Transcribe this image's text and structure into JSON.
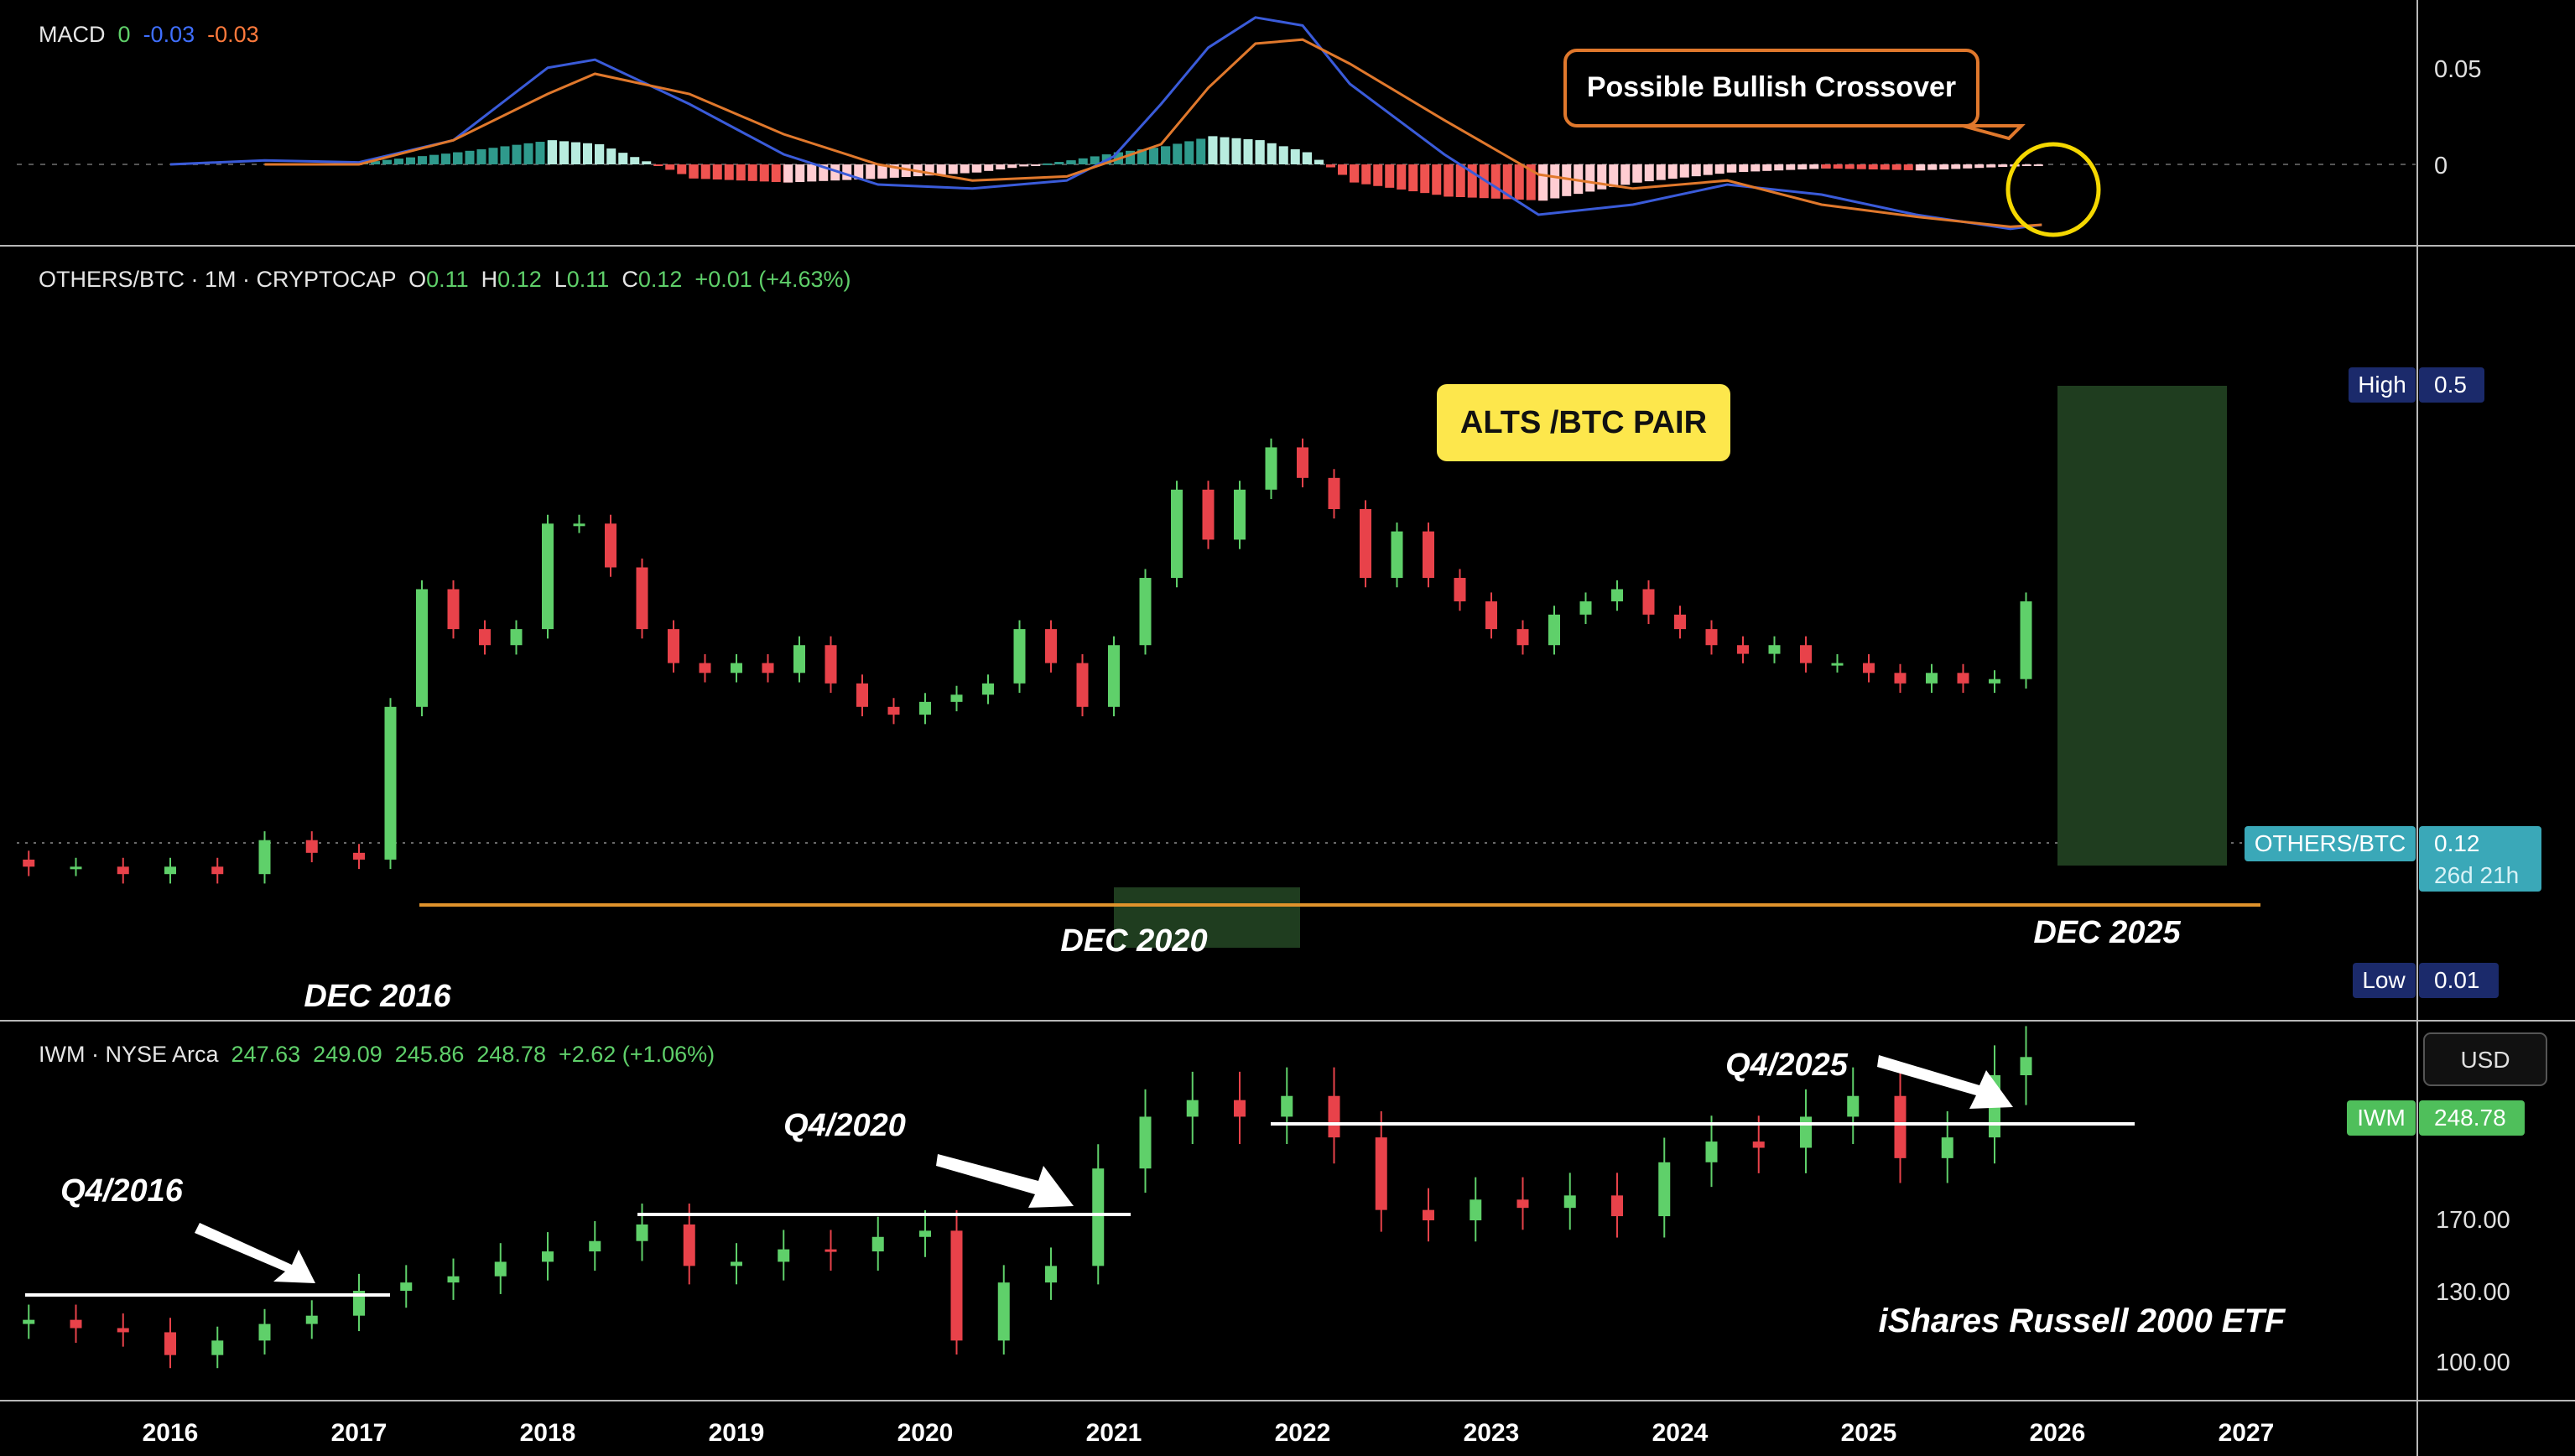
{
  "macd_panel": {
    "label": "MACD",
    "values": [
      "0",
      "-0.03",
      "-0.03"
    ],
    "axis_ticks": [
      "0.05",
      "0"
    ],
    "annotation": "Possible Bullish Crossover"
  },
  "others_panel": {
    "symbol": "OTHERS/BTC · 1M · CRYPTOCAP",
    "ohlc": {
      "o": "0.11",
      "h": "0.12",
      "l": "0.11",
      "c": "0.12",
      "change": "+0.01 (+4.63%)"
    },
    "title_box": "ALTS /BTC PAIR",
    "high_label": "High",
    "high_value": "0.5",
    "low_label": "Low",
    "low_value": "0.01",
    "price_tag_name": "OTHERS/BTC",
    "price_tag_value": "0.12",
    "price_tag_countdown": "26d 21h",
    "cycle_labels": [
      "DEC 2016",
      "DEC 2020",
      "DEC 2025"
    ]
  },
  "iwm_panel": {
    "symbol": "IWM · NYSE Arca",
    "ohlc": [
      "247.63",
      "249.09",
      "245.86",
      "248.78"
    ],
    "change": "+2.62 (+1.06%)",
    "currency": "USD",
    "price_tag_name": "IWM",
    "price_tag_value": "248.78",
    "axis_ticks": [
      "170.00",
      "130.00",
      "100.00"
    ],
    "caption": "iShares Russell 2000 ETF",
    "quarter_labels": [
      "Q4/2016",
      "Q4/2020",
      "Q4/2025"
    ]
  },
  "x_axis": {
    "ticks": [
      "2016",
      "2017",
      "2018",
      "2019",
      "2020",
      "2021",
      "2022",
      "2023",
      "2024",
      "2025",
      "2026",
      "2027"
    ]
  },
  "colors": {
    "up": "#5fd06a",
    "down": "#e8424a",
    "macd_line": "#3a5bd9",
    "signal_line": "#e0782c",
    "hist_up_strong": "#2f9a8c",
    "hist_up_weak": "#b8ecdf",
    "hist_down_strong": "#ef5350",
    "hist_down_weak": "#ffcdd2",
    "highlight_zone": "#1f3d1f",
    "support_line": "#e0932c",
    "annotation_yellow": "#fde74c"
  },
  "chart_data": [
    {
      "type": "line",
      "title": "MACD",
      "x_range": [
        "2015-01",
        "2027-04"
      ],
      "series": [
        {
          "name": "MACD",
          "x": [
            "2016-01",
            "2016-07",
            "2017-01",
            "2017-07",
            "2018-01",
            "2018-04",
            "2018-10",
            "2019-04",
            "2019-10",
            "2020-04",
            "2020-10",
            "2021-01",
            "2021-04",
            "2021-07",
            "2021-10",
            "2022-01",
            "2022-04",
            "2022-10",
            "2023-04",
            "2023-10",
            "2024-04",
            "2024-10",
            "2025-04",
            "2025-10",
            "2025-12"
          ],
          "values": [
            0,
            0.002,
            0.001,
            0.012,
            0.048,
            0.052,
            0.03,
            0.005,
            -0.01,
            -0.012,
            -0.008,
            0.004,
            0.03,
            0.058,
            0.073,
            0.069,
            0.04,
            0.005,
            -0.025,
            -0.02,
            -0.01,
            -0.015,
            -0.025,
            -0.032,
            -0.03
          ]
        },
        {
          "name": "Signal",
          "x": [
            "2016-07",
            "2017-01",
            "2017-07",
            "2018-01",
            "2018-04",
            "2018-10",
            "2019-04",
            "2019-10",
            "2020-04",
            "2020-10",
            "2021-04",
            "2021-07",
            "2021-10",
            "2022-01",
            "2022-04",
            "2022-10",
            "2023-04",
            "2023-10",
            "2024-04",
            "2024-10",
            "2025-04",
            "2025-10",
            "2025-12"
          ],
          "values": [
            0,
            0.0,
            0.012,
            0.035,
            0.045,
            0.035,
            0.015,
            0.0,
            -0.008,
            -0.006,
            0.01,
            0.038,
            0.06,
            0.062,
            0.05,
            0.022,
            -0.005,
            -0.012,
            -0.008,
            -0.02,
            -0.026,
            -0.031,
            -0.03
          ]
        }
      ],
      "histogram": {
        "x": [
          "2017-01",
          "2017-07",
          "2018-01",
          "2018-04",
          "2018-10",
          "2019-04",
          "2019-10",
          "2020-04",
          "2020-10",
          "2021-01",
          "2021-04",
          "2021-07",
          "2021-10",
          "2022-01",
          "2022-04",
          "2022-10",
          "2023-04",
          "2023-10",
          "2024-04",
          "2024-10",
          "2025-04",
          "2025-10",
          "2025-12"
        ],
        "values": [
          0.001,
          0.006,
          0.012,
          0.01,
          -0.007,
          -0.009,
          -0.007,
          -0.004,
          0.002,
          0.006,
          0.009,
          0.014,
          0.012,
          0.006,
          -0.009,
          -0.016,
          -0.018,
          -0.009,
          -0.004,
          -0.002,
          -0.003,
          -0.001,
          0.0
        ]
      },
      "ylim": [
        -0.04,
        0.1
      ]
    },
    {
      "type": "candlestick",
      "title": "OTHERS/BTC · 1M · CRYPTOCAP",
      "x_range": [
        "2015-01",
        "2027-04"
      ],
      "scale": "log",
      "ylim": [
        0.01,
        0.5
      ],
      "series": [
        {
          "name": "OTHERS/BTC",
          "x": [
            "2015-01",
            "2015-04",
            "2015-07",
            "2015-10",
            "2016-01",
            "2016-04",
            "2016-07",
            "2016-10",
            "2017-01",
            "2017-03",
            "2017-05",
            "2017-07",
            "2017-09",
            "2017-11",
            "2018-01",
            "2018-03",
            "2018-05",
            "2018-07",
            "2018-09",
            "2018-11",
            "2019-01",
            "2019-03",
            "2019-05",
            "2019-07",
            "2019-09",
            "2019-11",
            "2020-01",
            "2020-03",
            "2020-05",
            "2020-07",
            "2020-09",
            "2020-11",
            "2021-01",
            "2021-03",
            "2021-05",
            "2021-07",
            "2021-09",
            "2021-11",
            "2022-01",
            "2022-03",
            "2022-05",
            "2022-07",
            "2022-09",
            "2022-11",
            "2023-01",
            "2023-03",
            "2023-05",
            "2023-07",
            "2023-09",
            "2023-11",
            "2024-01",
            "2024-03",
            "2024-05",
            "2024-07",
            "2024-09",
            "2024-11",
            "2025-01",
            "2025-03",
            "2025-05",
            "2025-07",
            "2025-09",
            "2025-11"
          ],
          "close": [
            0.022,
            0.021,
            0.021,
            0.02,
            0.021,
            0.02,
            0.025,
            0.023,
            0.022,
            0.06,
            0.13,
            0.1,
            0.09,
            0.1,
            0.2,
            0.2,
            0.15,
            0.1,
            0.08,
            0.075,
            0.08,
            0.075,
            0.09,
            0.07,
            0.06,
            0.057,
            0.062,
            0.065,
            0.07,
            0.1,
            0.08,
            0.06,
            0.09,
            0.14,
            0.25,
            0.18,
            0.25,
            0.33,
            0.27,
            0.22,
            0.14,
            0.19,
            0.14,
            0.12,
            0.1,
            0.09,
            0.11,
            0.12,
            0.13,
            0.11,
            0.1,
            0.09,
            0.085,
            0.09,
            0.08,
            0.08,
            0.075,
            0.07,
            0.075,
            0.07,
            0.072,
            0.12
          ]
        }
      ]
    },
    {
      "type": "candlestick",
      "title": "IWM · NYSE Arca",
      "x_range": [
        "2015-01",
        "2027-04"
      ],
      "ylim": [
        90,
        280
      ],
      "series": [
        {
          "name": "IWM",
          "x": [
            "2015-01",
            "2015-04",
            "2015-07",
            "2015-10",
            "2016-01",
            "2016-04",
            "2016-07",
            "2016-10",
            "2017-01",
            "2017-04",
            "2017-07",
            "2017-10",
            "2018-01",
            "2018-04",
            "2018-07",
            "2018-10",
            "2019-01",
            "2019-04",
            "2019-07",
            "2019-10",
            "2020-01",
            "2020-03",
            "2020-06",
            "2020-09",
            "2020-12",
            "2021-03",
            "2021-06",
            "2021-09",
            "2021-12",
            "2022-03",
            "2022-06",
            "2022-09",
            "2022-12",
            "2023-03",
            "2023-06",
            "2023-09",
            "2023-12",
            "2024-03",
            "2024-06",
            "2024-09",
            "2024-12",
            "2025-03",
            "2025-06",
            "2025-09",
            "2025-11"
          ],
          "close": [
            120,
            122,
            118,
            116,
            105,
            112,
            120,
            124,
            136,
            140,
            143,
            150,
            155,
            160,
            168,
            148,
            150,
            156,
            155,
            162,
            165,
            112,
            140,
            148,
            195,
            220,
            228,
            220,
            230,
            210,
            175,
            170,
            180,
            176,
            182,
            172,
            198,
            208,
            205,
            220,
            230,
            200,
            210,
            240,
            248.78
          ]
        }
      ],
      "annotations": [
        "Q4/2016",
        "Q4/2020",
        "Q4/2025"
      ]
    }
  ]
}
